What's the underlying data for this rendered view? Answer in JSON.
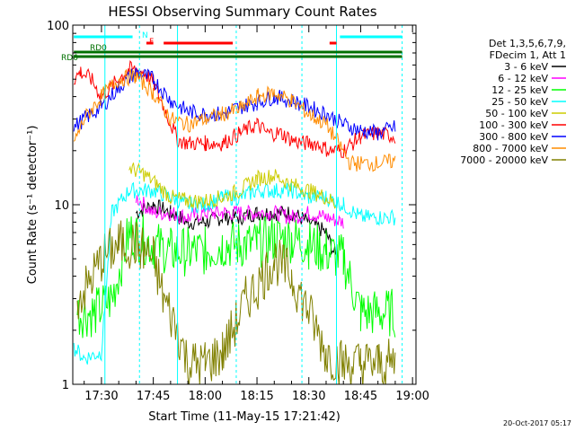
{
  "chart_data": {
    "type": "line",
    "title": "HESSI Observing Summary Count Rates",
    "xlabel": "Start Time (11-May-15 17:21:42)",
    "ylabel": "Count Rate (s⁻¹ detector⁻¹)",
    "x_scale": "time",
    "y_scale": "log",
    "xlim": [
      "17:21:42",
      "19:01:00"
    ],
    "ylim": [
      1,
      100
    ],
    "x_ticks": [
      "17:30",
      "17:45",
      "18:00",
      "18:15",
      "18:30",
      "18:45",
      "19:00"
    ],
    "y_ticks": [
      "1",
      "10",
      "100"
    ],
    "legend_position": "right",
    "legend_header": [
      "Det 1,3,5,6,7,9,",
      "FDecim 1, Att 1"
    ],
    "timestamp": "20-Oct-2017 05:17",
    "flags": [
      {
        "label": "N",
        "color": "#00ffff"
      },
      {
        "label": "F",
        "color": "#ff0000"
      },
      {
        "label": "RD0",
        "color": "#007000"
      },
      {
        "label": "RD6",
        "color": "#007000"
      }
    ],
    "series": [
      {
        "name": "3 - 6 keV",
        "color": "#000000",
        "points": [
          [
            "17:40",
            9
          ],
          [
            "17:45",
            10
          ],
          [
            "17:50",
            9
          ],
          [
            "17:55",
            8
          ],
          [
            "18:00",
            8
          ],
          [
            "18:05",
            8.5
          ],
          [
            "18:10",
            8.5
          ],
          [
            "18:15",
            9
          ],
          [
            "18:20",
            9
          ],
          [
            "18:25",
            9
          ],
          [
            "18:30",
            8
          ],
          [
            "18:35",
            7
          ],
          [
            "18:38",
            5
          ]
        ]
      },
      {
        "name": "6 - 12 keV",
        "color": "#ff00ff",
        "points": [
          [
            "17:40",
            11
          ],
          [
            "17:45",
            9
          ],
          [
            "17:50",
            9
          ],
          [
            "17:55",
            8.5
          ],
          [
            "18:00",
            9
          ],
          [
            "18:05",
            9
          ],
          [
            "18:10",
            9
          ],
          [
            "18:15",
            9
          ],
          [
            "18:20",
            9
          ],
          [
            "18:25",
            8.5
          ],
          [
            "18:30",
            9
          ],
          [
            "18:35",
            8.5
          ],
          [
            "18:40",
            8
          ]
        ]
      },
      {
        "name": "12 - 25 keV",
        "color": "#00ff00",
        "points": [
          [
            "17:23",
            2.5
          ],
          [
            "17:28",
            2.5
          ],
          [
            "17:33",
            3
          ],
          [
            "17:38",
            7
          ],
          [
            "17:45",
            6
          ],
          [
            "17:50",
            5.5
          ],
          [
            "17:55",
            5.5
          ],
          [
            "18:00",
            5.5
          ],
          [
            "18:05",
            6
          ],
          [
            "18:10",
            6
          ],
          [
            "18:15",
            6
          ],
          [
            "18:20",
            6.5
          ],
          [
            "18:25",
            6.5
          ],
          [
            "18:30",
            6
          ],
          [
            "18:35",
            5.5
          ],
          [
            "18:40",
            5
          ],
          [
            "18:45",
            2.5
          ],
          [
            "18:55",
            2.5
          ]
        ]
      },
      {
        "name": "25 - 50 keV",
        "color": "#00ffff",
        "points": [
          [
            "17:22",
            1.6
          ],
          [
            "17:25",
            1.4
          ],
          [
            "17:30",
            1.5
          ],
          [
            "17:33",
            9
          ],
          [
            "17:38",
            12
          ],
          [
            "17:45",
            12
          ],
          [
            "17:50",
            11
          ],
          [
            "17:55",
            10
          ],
          [
            "18:00",
            10
          ],
          [
            "18:05",
            11
          ],
          [
            "18:10",
            11
          ],
          [
            "18:15",
            12
          ],
          [
            "18:20",
            12
          ],
          [
            "18:25",
            12
          ],
          [
            "18:30",
            11
          ],
          [
            "18:35",
            11
          ],
          [
            "18:40",
            10
          ],
          [
            "18:45",
            8.5
          ],
          [
            "18:50",
            8.5
          ],
          [
            "18:55",
            8.5
          ]
        ]
      },
      {
        "name": "50 - 100 keV",
        "color": "#cccc00",
        "points": [
          [
            "17:38",
            16
          ],
          [
            "17:42",
            15
          ],
          [
            "17:46",
            13
          ],
          [
            "17:50",
            11
          ],
          [
            "17:55",
            10.5
          ],
          [
            "18:00",
            10.5
          ],
          [
            "18:05",
            11
          ],
          [
            "18:10",
            12
          ],
          [
            "18:15",
            14
          ],
          [
            "18:20",
            14.5
          ],
          [
            "18:25",
            13
          ],
          [
            "18:30",
            12
          ],
          [
            "18:35",
            11
          ],
          [
            "18:38",
            10
          ]
        ]
      },
      {
        "name": "100 - 300 keV",
        "color": "#ff0000",
        "points": [
          [
            "17:22",
            50
          ],
          [
            "17:24",
            55
          ],
          [
            "17:27",
            50
          ],
          [
            "17:30",
            40
          ],
          [
            "17:35",
            50
          ],
          [
            "17:38",
            57
          ],
          [
            "17:42",
            55
          ],
          [
            "17:45",
            48
          ],
          [
            "17:48",
            35
          ],
          [
            "17:52",
            23
          ],
          [
            "17:55",
            22
          ],
          [
            "18:00",
            22
          ],
          [
            "18:05",
            22
          ],
          [
            "18:10",
            25
          ],
          [
            "18:15",
            28
          ],
          [
            "18:18",
            25
          ],
          [
            "18:22",
            25
          ],
          [
            "18:25",
            23
          ],
          [
            "18:28",
            22
          ],
          [
            "18:32",
            22
          ],
          [
            "18:36",
            20
          ],
          [
            "18:40",
            20
          ],
          [
            "18:45",
            24
          ],
          [
            "18:50",
            25
          ],
          [
            "18:55",
            24
          ]
        ]
      },
      {
        "name": "300 - 800 keV",
        "color": "#0000ff",
        "points": [
          [
            "17:22",
            27
          ],
          [
            "17:25",
            30
          ],
          [
            "17:30",
            35
          ],
          [
            "17:35",
            45
          ],
          [
            "17:40",
            55
          ],
          [
            "17:45",
            50
          ],
          [
            "17:50",
            38
          ],
          [
            "17:55",
            33
          ],
          [
            "18:00",
            32
          ],
          [
            "18:05",
            32
          ],
          [
            "18:10",
            35
          ],
          [
            "18:15",
            37
          ],
          [
            "18:20",
            40
          ],
          [
            "18:25",
            38
          ],
          [
            "18:30",
            35
          ],
          [
            "18:35",
            32
          ],
          [
            "18:40",
            28
          ],
          [
            "18:45",
            26
          ],
          [
            "18:50",
            25
          ],
          [
            "18:55",
            27
          ]
        ]
      },
      {
        "name": "800 - 7000 keV",
        "color": "#ff8c00",
        "points": [
          [
            "17:22",
            22
          ],
          [
            "17:25",
            30
          ],
          [
            "17:30",
            40
          ],
          [
            "17:35",
            50
          ],
          [
            "17:40",
            52
          ],
          [
            "17:45",
            42
          ],
          [
            "17:50",
            30
          ],
          [
            "17:55",
            28
          ],
          [
            "18:00",
            30
          ],
          [
            "18:05",
            32
          ],
          [
            "18:10",
            34
          ],
          [
            "18:15",
            40
          ],
          [
            "18:20",
            42
          ],
          [
            "18:25",
            38
          ],
          [
            "18:30",
            32
          ],
          [
            "18:35",
            28
          ],
          [
            "18:38",
            23
          ],
          [
            "18:42",
            17
          ],
          [
            "18:50",
            17
          ],
          [
            "18:55",
            17.5
          ]
        ]
      },
      {
        "name": "7000 - 20000 keV",
        "color": "#808000",
        "points": [
          [
            "17:23",
            3
          ],
          [
            "17:26",
            3.5
          ],
          [
            "17:30",
            5
          ],
          [
            "17:35",
            6
          ],
          [
            "17:40",
            6
          ],
          [
            "17:45",
            5
          ],
          [
            "17:48",
            3
          ],
          [
            "17:52",
            2
          ],
          [
            "17:55",
            1.3
          ],
          [
            "18:00",
            1.3
          ],
          [
            "18:05",
            1.5
          ],
          [
            "18:08",
            2
          ],
          [
            "18:12",
            3
          ],
          [
            "18:15",
            3.5
          ],
          [
            "18:20",
            5
          ],
          [
            "18:25",
            4
          ],
          [
            "18:30",
            2.5
          ],
          [
            "18:35",
            1.5
          ],
          [
            "18:40",
            1.3
          ],
          [
            "18:45",
            1.3
          ],
          [
            "18:50",
            1.3
          ],
          [
            "18:55",
            1.3
          ]
        ]
      }
    ]
  }
}
